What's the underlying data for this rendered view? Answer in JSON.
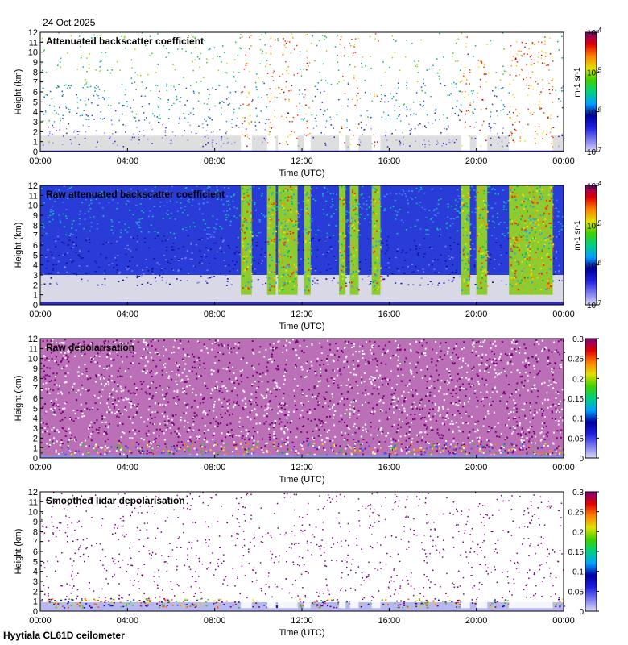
{
  "header": {
    "date": "24 Oct 2025"
  },
  "footer": {
    "site_instrument": "Hyytiala CL61D ceilometer"
  },
  "chart_data": [
    {
      "type": "heatmap",
      "title": "Attenuated backscatter coefficient",
      "xlabel": "Time (UTC)",
      "ylabel": "Height (km)",
      "xlim": [
        0,
        24
      ],
      "ylim": [
        0,
        12
      ],
      "xticks": [
        "00:00",
        "04:00",
        "08:00",
        "12:00",
        "16:00",
        "20:00",
        "00:00"
      ],
      "yticks": [
        "0",
        "1",
        "2",
        "3",
        "4",
        "5",
        "6",
        "7",
        "8",
        "9",
        "10",
        "11",
        "12"
      ],
      "colorbar": {
        "scale": "log",
        "range": [
          1e-07,
          0.0001
        ],
        "tick_labels": [
          "10-7",
          "10-6",
          "10-5",
          "10-4"
        ],
        "unit": "m-1 sr-1"
      },
      "pattern": "sparse"
    },
    {
      "type": "heatmap",
      "title": "Raw attenuated backscatter coefficient",
      "xlabel": "Time (UTC)",
      "ylabel": "Height (km)",
      "xlim": [
        0,
        24
      ],
      "ylim": [
        0,
        12
      ],
      "xticks": [
        "00:00",
        "04:00",
        "08:00",
        "12:00",
        "16:00",
        "20:00",
        "00:00"
      ],
      "yticks": [
        "0",
        "1",
        "2",
        "3",
        "4",
        "5",
        "6",
        "7",
        "8",
        "9",
        "10",
        "11",
        "12"
      ],
      "colorbar": {
        "scale": "log",
        "range": [
          1e-07,
          0.0001
        ],
        "tick_labels": [
          "10-7",
          "10-6",
          "10-5",
          "10-4"
        ],
        "unit": "m-1 sr-1"
      },
      "pattern": "dense"
    },
    {
      "type": "heatmap",
      "title": "Raw depolarisation",
      "xlabel": "Time (UTC)",
      "ylabel": "Height (km)",
      "xlim": [
        0,
        24
      ],
      "ylim": [
        0,
        12
      ],
      "xticks": [
        "00:00",
        "04:00",
        "08:00",
        "12:00",
        "16:00",
        "20:00",
        "00:00"
      ],
      "yticks": [
        "0",
        "1",
        "2",
        "3",
        "4",
        "5",
        "6",
        "7",
        "8",
        "9",
        "10",
        "11",
        "12"
      ],
      "colorbar": {
        "scale": "linear",
        "range": [
          0,
          0.3
        ],
        "tick_labels": [
          "0",
          "0.05",
          "0.1",
          "0.15",
          "0.2",
          "0.25",
          "0.3"
        ],
        "unit": ""
      },
      "pattern": "noise"
    },
    {
      "type": "heatmap",
      "title": "Smoothed lidar depolarisation",
      "xlabel": "Time (UTC)",
      "ylabel": "Height (km)",
      "xlim": [
        0,
        24
      ],
      "ylim": [
        0,
        12
      ],
      "xticks": [
        "00:00",
        "04:00",
        "08:00",
        "12:00",
        "16:00",
        "20:00",
        "00:00"
      ],
      "yticks": [
        "0",
        "1",
        "2",
        "3",
        "4",
        "5",
        "6",
        "7",
        "8",
        "9",
        "10",
        "11",
        "12"
      ],
      "colorbar": {
        "scale": "linear",
        "range": [
          0,
          0.3
        ],
        "tick_labels": [
          "0",
          "0.05",
          "0.1",
          "0.15",
          "0.2",
          "0.25",
          "0.3"
        ],
        "unit": ""
      },
      "pattern": "speckle"
    }
  ],
  "colormap": [
    "#ffffff",
    "#c8c8f0",
    "#3232e6",
    "#0000a0",
    "#00b4ff",
    "#00d070",
    "#30d000",
    "#c8e000",
    "#ffd000",
    "#ff7000",
    "#e00000",
    "#a00060",
    "#800080"
  ],
  "masked_color": "#dcdcdc",
  "cloud_bands_hours": [
    [
      9.2,
      9.7
    ],
    [
      10.4,
      10.8
    ],
    [
      10.9,
      11.8
    ],
    [
      12.1,
      12.4
    ],
    [
      13.7,
      14.0
    ],
    [
      14.2,
      14.6
    ],
    [
      15.2,
      15.6
    ],
    [
      19.3,
      19.7
    ],
    [
      20.0,
      20.5
    ],
    [
      21.5,
      23.5
    ]
  ]
}
